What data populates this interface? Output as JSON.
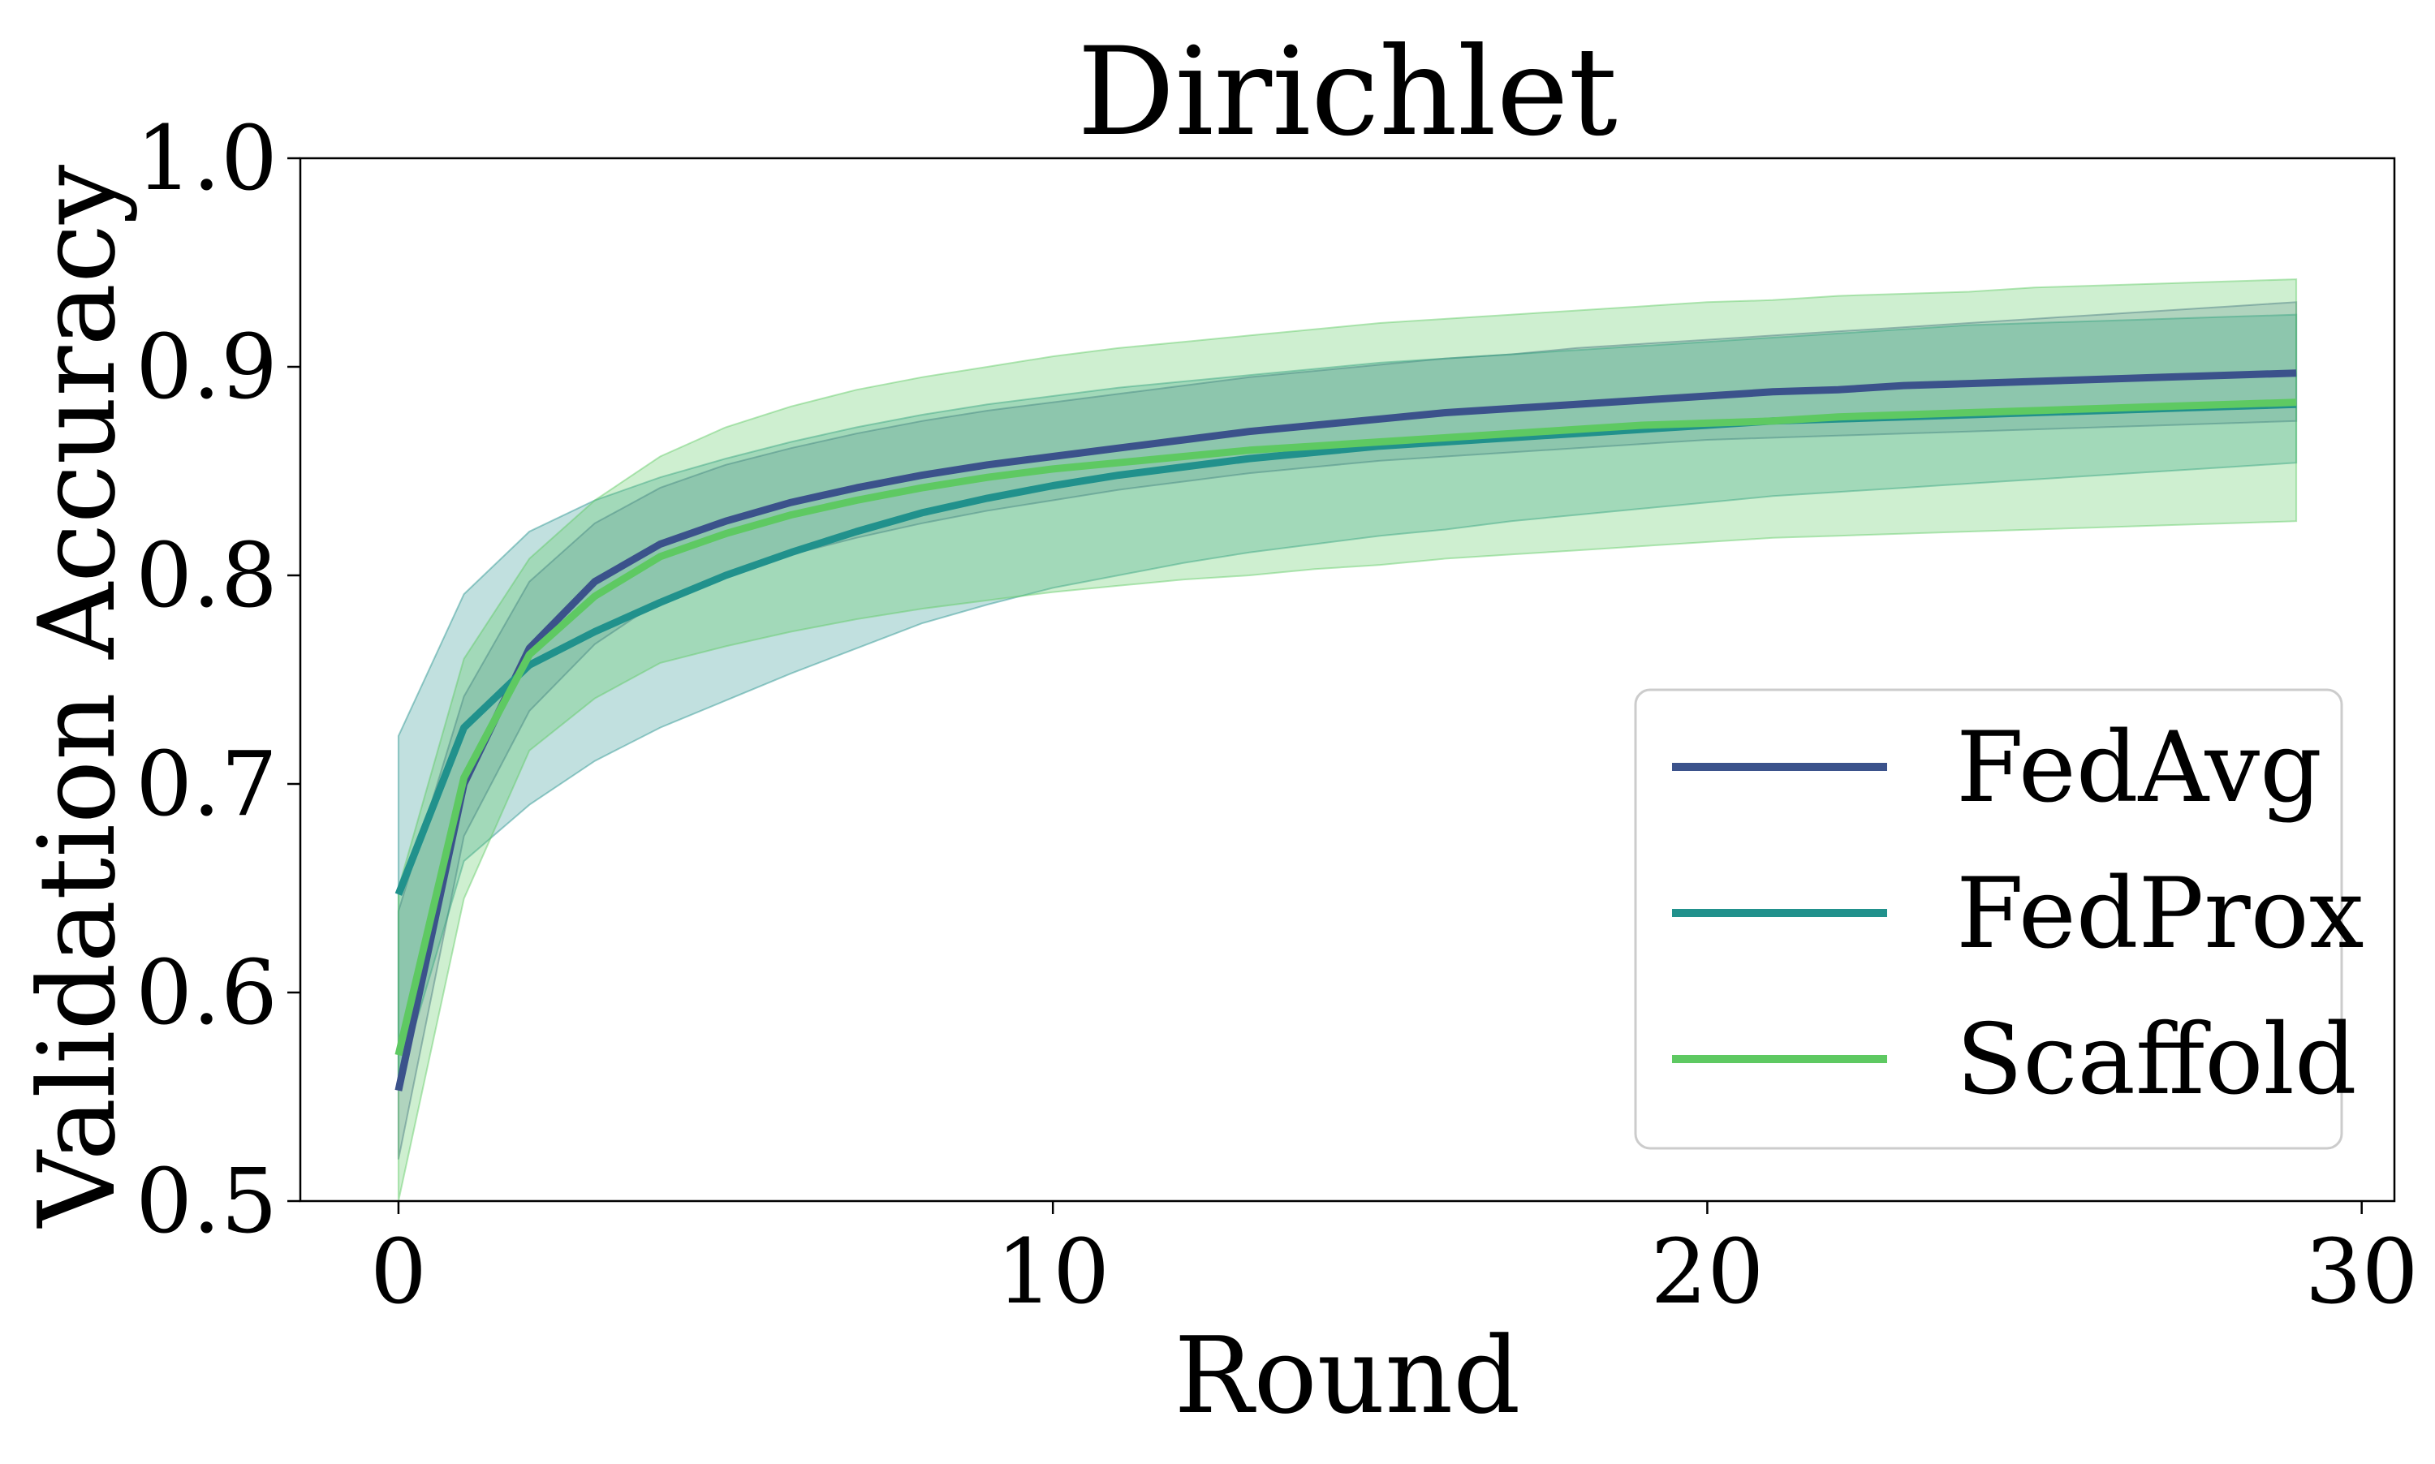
{
  "chart_data": {
    "type": "line",
    "title": "Dirichlet",
    "xlabel": "Round",
    "ylabel": "Validation Accuracy",
    "xlim": [
      -1.5,
      30.5
    ],
    "ylim": [
      0.5,
      1.0
    ],
    "xticks": [
      0,
      10,
      20,
      30
    ],
    "xtick_labels": [
      "0",
      "10",
      "20",
      "30"
    ],
    "yticks": [
      0.5,
      0.6,
      0.7,
      0.8,
      0.9,
      1.0
    ],
    "ytick_labels": [
      "0.5",
      "0.6",
      "0.7",
      "0.8",
      "0.9",
      "1.0"
    ],
    "grid": false,
    "legend_position": "lower-right",
    "x": [
      0,
      1,
      2,
      3,
      4,
      5,
      6,
      7,
      8,
      9,
      10,
      11,
      12,
      13,
      14,
      15,
      16,
      17,
      18,
      19,
      20,
      21,
      22,
      23,
      24,
      25,
      26,
      27,
      28,
      29
    ],
    "series": [
      {
        "name": "FedAvg",
        "color": "#3b528b",
        "band_color": "#3b528b",
        "band_opacity": 0.22,
        "values": [
          0.553,
          0.7,
          0.765,
          0.797,
          0.815,
          0.826,
          0.835,
          0.842,
          0.848,
          0.853,
          0.857,
          0.861,
          0.865,
          0.869,
          0.872,
          0.875,
          0.878,
          0.88,
          0.882,
          0.884,
          0.886,
          0.888,
          0.889,
          0.891,
          0.892,
          0.893,
          0.894,
          0.895,
          0.896,
          0.897
        ],
        "upper": [
          0.639,
          0.742,
          0.797,
          0.825,
          0.842,
          0.853,
          0.861,
          0.868,
          0.874,
          0.879,
          0.883,
          0.887,
          0.891,
          0.895,
          0.898,
          0.901,
          0.904,
          0.906,
          0.909,
          0.911,
          0.913,
          0.915,
          0.917,
          0.919,
          0.921,
          0.923,
          0.925,
          0.927,
          0.929,
          0.931
        ],
        "lower": [
          0.52,
          0.675,
          0.735,
          0.767,
          0.788,
          0.8,
          0.81,
          0.818,
          0.825,
          0.831,
          0.836,
          0.841,
          0.845,
          0.849,
          0.852,
          0.855,
          0.857,
          0.859,
          0.861,
          0.863,
          0.865,
          0.866,
          0.867,
          0.868,
          0.869,
          0.87,
          0.871,
          0.872,
          0.873,
          0.874
        ]
      },
      {
        "name": "FedProx",
        "color": "#21918c",
        "band_color": "#21918c",
        "band_opacity": 0.28,
        "values": [
          0.647,
          0.727,
          0.757,
          0.773,
          0.787,
          0.8,
          0.811,
          0.821,
          0.83,
          0.837,
          0.843,
          0.848,
          0.852,
          0.856,
          0.859,
          0.862,
          0.864,
          0.866,
          0.868,
          0.87,
          0.872,
          0.874,
          0.875,
          0.876,
          0.877,
          0.878,
          0.879,
          0.88,
          0.881,
          0.882
        ],
        "upper": [
          0.723,
          0.791,
          0.821,
          0.836,
          0.847,
          0.856,
          0.864,
          0.871,
          0.877,
          0.882,
          0.886,
          0.89,
          0.893,
          0.896,
          0.899,
          0.902,
          0.904,
          0.906,
          0.908,
          0.91,
          0.912,
          0.914,
          0.916,
          0.918,
          0.92,
          0.921,
          0.922,
          0.923,
          0.924,
          0.925
        ],
        "lower": [
          0.557,
          0.663,
          0.69,
          0.711,
          0.727,
          0.74,
          0.753,
          0.765,
          0.777,
          0.786,
          0.794,
          0.8,
          0.806,
          0.811,
          0.815,
          0.819,
          0.822,
          0.826,
          0.829,
          0.832,
          0.835,
          0.838,
          0.84,
          0.842,
          0.844,
          0.846,
          0.848,
          0.85,
          0.852,
          0.854
        ]
      },
      {
        "name": "Scaffold",
        "color": "#5ec962",
        "band_color": "#5ec962",
        "band_opacity": 0.3,
        "values": [
          0.57,
          0.703,
          0.762,
          0.79,
          0.809,
          0.82,
          0.829,
          0.836,
          0.842,
          0.847,
          0.851,
          0.854,
          0.857,
          0.86,
          0.862,
          0.864,
          0.866,
          0.868,
          0.87,
          0.872,
          0.873,
          0.874,
          0.876,
          0.877,
          0.878,
          0.879,
          0.88,
          0.881,
          0.882,
          0.883
        ],
        "upper": [
          0.65,
          0.76,
          0.808,
          0.836,
          0.857,
          0.871,
          0.881,
          0.889,
          0.895,
          0.9,
          0.905,
          0.909,
          0.912,
          0.915,
          0.918,
          0.921,
          0.923,
          0.925,
          0.927,
          0.929,
          0.931,
          0.932,
          0.934,
          0.935,
          0.936,
          0.938,
          0.939,
          0.94,
          0.941,
          0.942
        ],
        "lower": [
          0.5,
          0.645,
          0.716,
          0.741,
          0.758,
          0.766,
          0.773,
          0.779,
          0.784,
          0.788,
          0.792,
          0.795,
          0.798,
          0.8,
          0.803,
          0.805,
          0.808,
          0.81,
          0.812,
          0.814,
          0.816,
          0.818,
          0.819,
          0.82,
          0.821,
          0.822,
          0.823,
          0.824,
          0.825,
          0.826
        ]
      }
    ]
  }
}
